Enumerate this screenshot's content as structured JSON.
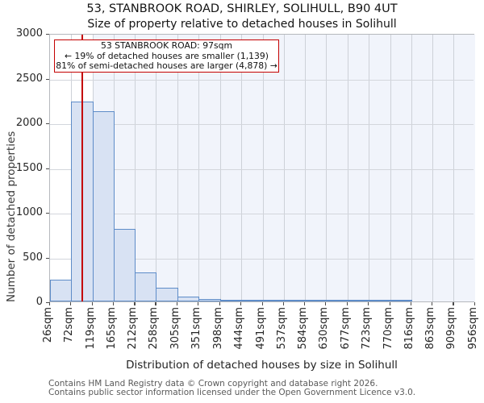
{
  "chart_data": {
    "type": "bar",
    "title": "53, STANBROOK ROAD, SHIRLEY, SOLIHULL, B90 4UT",
    "subtitle": "Size of property relative to detached houses in Solihull",
    "xlabel": "Distribution of detached houses by size in Solihull",
    "ylabel": "Number of detached properties",
    "categories": [
      "26sqm",
      "72sqm",
      "119sqm",
      "165sqm",
      "212sqm",
      "258sqm",
      "305sqm",
      "351sqm",
      "398sqm",
      "444sqm",
      "491sqm",
      "537sqm",
      "584sqm",
      "630sqm",
      "677sqm",
      "723sqm",
      "770sqm",
      "816sqm",
      "863sqm",
      "909sqm",
      "956sqm"
    ],
    "bin_edges_sqm": [
      26,
      72,
      119,
      165,
      212,
      258,
      305,
      351,
      398,
      444,
      491,
      537,
      584,
      630,
      677,
      723,
      770,
      816,
      863,
      909,
      956
    ],
    "values": [
      245,
      2230,
      2130,
      815,
      320,
      150,
      55,
      25,
      18,
      14,
      10,
      8,
      3,
      2,
      1,
      1,
      10,
      0,
      0,
      0
    ],
    "ylim": [
      0,
      3000
    ],
    "yticks": [
      0,
      500,
      1000,
      1500,
      2000,
      2500,
      3000
    ],
    "grid": true,
    "legend": "none",
    "marker_line": {
      "x_sqm": 97,
      "color": "#c40000"
    },
    "shaded_region": {
      "from_sqm": 119,
      "to_sqm": 956,
      "color": "#f1f4fb"
    },
    "annotation": {
      "line1": "53 STANBROOK ROAD: 97sqm",
      "line2": "← 19% of detached houses are smaller (1,139)",
      "line3": "81% of semi-detached houses are larger (4,878) →",
      "border_color": "#c40000"
    },
    "colors": {
      "bar_fill": "#d8e2f3",
      "bar_edge": "#5e8cc8",
      "gridline": "#cdd1d8",
      "frame": "#b5b8bd",
      "marker_red": "#c40000"
    }
  },
  "footer": {
    "line1": "Contains HM Land Registry data © Crown copyright and database right 2026.",
    "line2": "Contains public sector information licensed under the Open Government Licence v3.0."
  }
}
